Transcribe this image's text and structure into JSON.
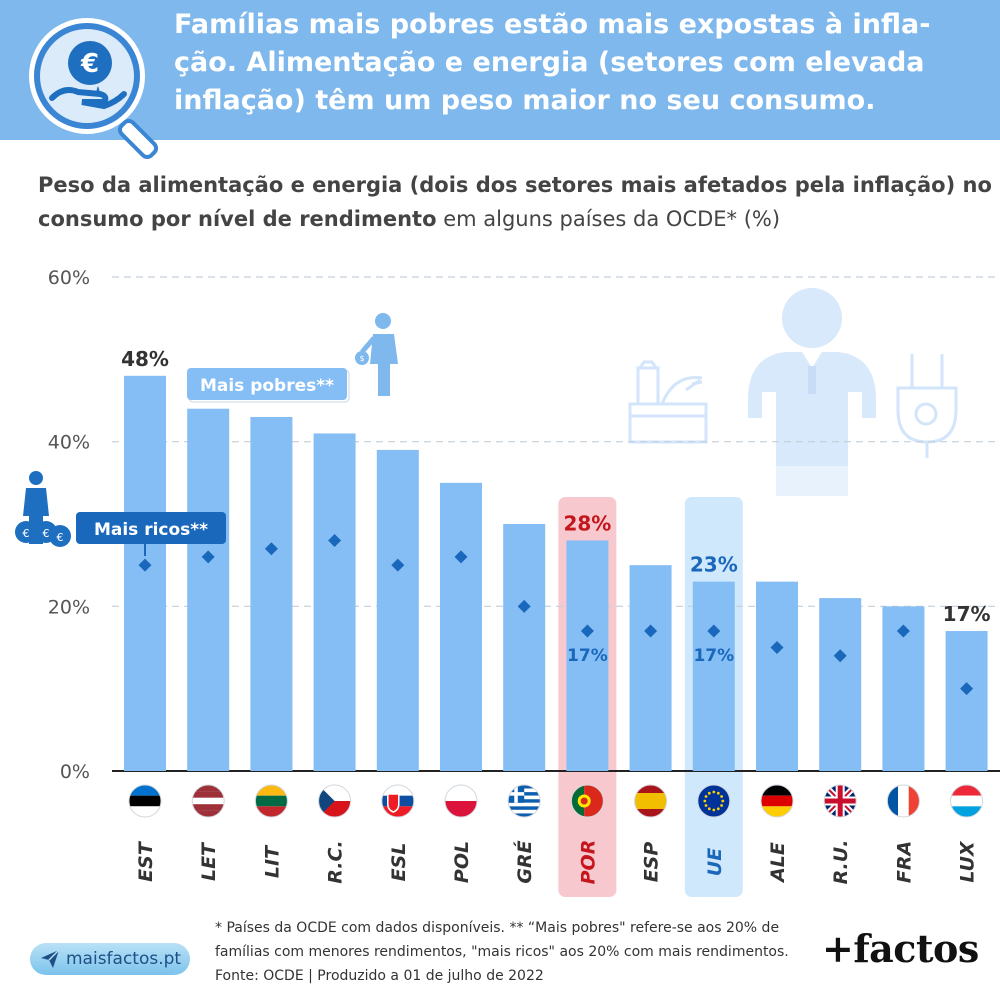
{
  "headline": "Famílias mais pobres estão mais expostas à infla-ção. Alimentação e energia (setores com elevada inflação) têm um peso maior no seu consumo.",
  "subtitle": {
    "bold": "Peso da alimentação e energia (dois dos setores mais afetados pela inflação) no consumo por nível de rendimento",
    "normal": " em alguns países da OCDE* (%)"
  },
  "chart_data": {
    "type": "bar",
    "title": "Peso da alimentação e energia (dois dos setores mais afetados pela inflação) no consumo por nível de rendimento em alguns países da OCDE* (%)",
    "categories": [
      "EST",
      "LET",
      "LIT",
      "R.C.",
      "ESL",
      "POL",
      "GRÉ",
      "POR",
      "ESP",
      "UE",
      "ALE",
      "R.U.",
      "FRA",
      "LUX"
    ],
    "series": [
      {
        "name": "Mais pobres**",
        "values": [
          48,
          44,
          43,
          41,
          39,
          35,
          30,
          28,
          25,
          23,
          23,
          21,
          20,
          17
        ],
        "color": "#85bdf5"
      },
      {
        "name": "Mais ricos**",
        "values": [
          25,
          26,
          27,
          28,
          25,
          26,
          20,
          17,
          17,
          17,
          15,
          14,
          17,
          10
        ],
        "color": "#1a68bc"
      }
    ],
    "yticks": [
      "60%",
      "40%",
      "20%",
      "0%"
    ],
    "ylim": [
      0,
      60
    ],
    "grid": true,
    "data_labels": [
      {
        "category": "EST",
        "series": "Mais pobres**",
        "text": "48%"
      },
      {
        "category": "POR",
        "series": "Mais pobres**",
        "text": "28%"
      },
      {
        "category": "UE",
        "series": "Mais pobres**",
        "text": "23%"
      },
      {
        "category": "LUX",
        "series": "Mais pobres**",
        "text": "17%"
      },
      {
        "category": "POR",
        "series": "Mais ricos**",
        "text": "17%"
      },
      {
        "category": "UE",
        "series": "Mais ricos**",
        "text": "17%"
      }
    ],
    "highlights": [
      {
        "category": "POR",
        "color": "#f7c9ce",
        "label_color": "#c4161c"
      },
      {
        "category": "UE",
        "color": "#cfe8fb",
        "label_color": "#1a68bc"
      }
    ]
  },
  "footnote": "* Países da OCDE com dados disponíveis. ** “Mais pobres\" refere-se aos 20% de famílias com menores rendimentos, \"mais ricos\" aos 20% com mais rendimentos. Fonte: OCDE | Produzido a 01 de julho de 2022",
  "site": "maisfactos.pt",
  "brand": "+factos",
  "colors": {
    "banner": "#7fb8ec",
    "bar": "#85bdf5",
    "marker": "#1a68bc",
    "axis_text": "#555555",
    "highlight_red": "#c4161c",
    "illustration": "#d7e9fb"
  },
  "icons": [
    "magnifier-euro-icon",
    "person-with-money-bag-icon",
    "rich-person-with-money-bags-icon",
    "food-groceries-icon",
    "person-empty-pockets-icon",
    "electric-plug-icon",
    "paper-plane-icon"
  ]
}
